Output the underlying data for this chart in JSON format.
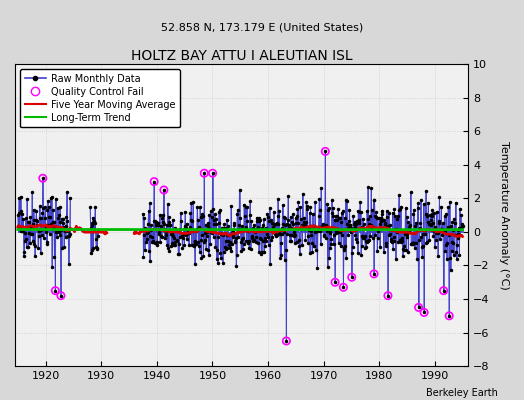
{
  "title": "HOLTZ BAY ATTU I ALEUTIAN ISL",
  "subtitle": "52.858 N, 173.179 E (United States)",
  "ylabel": "Temperature Anomaly (°C)",
  "credit": "Berkeley Earth",
  "xlim": [
    1914.5,
    1996
  ],
  "ylim": [
    -8,
    10
  ],
  "yticks": [
    -8,
    -6,
    -4,
    -2,
    0,
    2,
    4,
    6,
    8,
    10
  ],
  "xticks": [
    1920,
    1930,
    1940,
    1950,
    1960,
    1970,
    1980,
    1990
  ],
  "fig_bg": "#d8d8d8",
  "ax_bg": "#f0f0f0",
  "raw_color": "#4040cc",
  "ma_color": "#dd0000",
  "trend_color": "#00bb00",
  "qc_color": "#ff00ff",
  "seed": 42,
  "years_start": 1915,
  "years_end": 1995
}
